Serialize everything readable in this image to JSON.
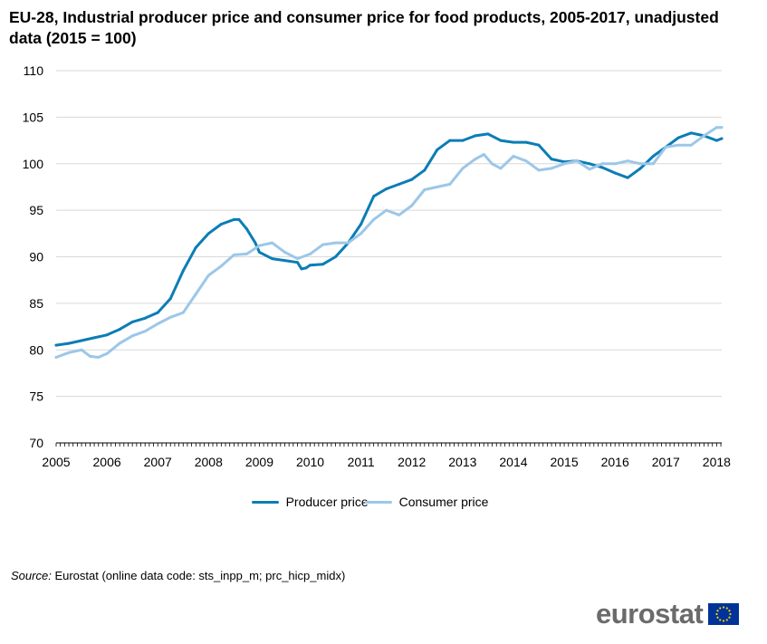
{
  "title": "EU-28, Industrial producer price and consumer price for food products, 2005-2017, unadjusted data (2015 = 100)",
  "source_label": "Source:",
  "source_text": "Eurostat (online data code: sts_inpp_m; prc_hicp_midx)",
  "logo_text": "eurostat",
  "chart_data": {
    "type": "line",
    "title": "EU-28, Industrial producer price and consumer price for food products, 2005-2017, unadjusted data (2015 = 100)",
    "xlabel": "",
    "ylabel": "",
    "xlim": [
      2005,
      2018.1
    ],
    "ylim": [
      70,
      110
    ],
    "y_ticks": [
      70,
      75,
      80,
      85,
      90,
      95,
      100,
      105,
      110
    ],
    "x_ticks": [
      2005,
      2006,
      2007,
      2008,
      2009,
      2010,
      2011,
      2012,
      2013,
      2014,
      2015,
      2016,
      2017,
      2018
    ],
    "grid": true,
    "legend_position": "bottom",
    "series": [
      {
        "name": "Producer price",
        "color": "#0b7db5",
        "x": [
          2005.0,
          2005.25,
          2005.5,
          2005.75,
          2006.0,
          2006.25,
          2006.5,
          2006.75,
          2007.0,
          2007.25,
          2007.5,
          2007.75,
          2008.0,
          2008.25,
          2008.5,
          2008.6,
          2008.75,
          2008.92,
          2009.0,
          2009.25,
          2009.5,
          2009.75,
          2009.83,
          2009.92,
          2010.0,
          2010.25,
          2010.5,
          2010.75,
          2011.0,
          2011.25,
          2011.5,
          2011.75,
          2012.0,
          2012.25,
          2012.5,
          2012.75,
          2013.0,
          2013.25,
          2013.5,
          2013.75,
          2014.0,
          2014.25,
          2014.5,
          2014.75,
          2015.0,
          2015.25,
          2015.5,
          2015.75,
          2016.0,
          2016.25,
          2016.5,
          2016.75,
          2017.0,
          2017.25,
          2017.5,
          2017.75,
          2018.0,
          2018.1
        ],
        "values": [
          80.5,
          80.7,
          81.0,
          81.3,
          81.6,
          82.2,
          83.0,
          83.4,
          84.0,
          85.5,
          88.5,
          91.0,
          92.5,
          93.5,
          94.0,
          94.0,
          93.0,
          91.5,
          90.5,
          89.8,
          89.6,
          89.4,
          88.7,
          88.8,
          89.1,
          89.2,
          90.0,
          91.5,
          93.5,
          96.5,
          97.3,
          97.8,
          98.3,
          99.3,
          101.5,
          102.5,
          102.5,
          103.0,
          103.2,
          102.5,
          102.3,
          102.3,
          102.0,
          100.5,
          100.2,
          100.3,
          100.0,
          99.6,
          99.0,
          98.5,
          99.5,
          100.8,
          101.8,
          102.8,
          103.3,
          103.0,
          102.5,
          102.7
        ]
      },
      {
        "name": "Consumer price",
        "color": "#9cc7e8",
        "x": [
          2005.0,
          2005.25,
          2005.5,
          2005.67,
          2005.83,
          2006.0,
          2006.25,
          2006.5,
          2006.75,
          2007.0,
          2007.25,
          2007.5,
          2007.75,
          2008.0,
          2008.25,
          2008.5,
          2008.75,
          2009.0,
          2009.25,
          2009.5,
          2009.75,
          2010.0,
          2010.25,
          2010.5,
          2010.75,
          2011.0,
          2011.25,
          2011.5,
          2011.75,
          2012.0,
          2012.25,
          2012.5,
          2012.75,
          2013.0,
          2013.25,
          2013.42,
          2013.58,
          2013.75,
          2014.0,
          2014.25,
          2014.5,
          2014.75,
          2015.0,
          2015.25,
          2015.5,
          2015.75,
          2016.0,
          2016.25,
          2016.5,
          2016.75,
          2017.0,
          2017.25,
          2017.5,
          2017.75,
          2018.0,
          2018.1
        ],
        "values": [
          79.2,
          79.7,
          80.0,
          79.3,
          79.2,
          79.6,
          80.7,
          81.5,
          82.0,
          82.8,
          83.5,
          84.0,
          86.0,
          88.0,
          89.0,
          90.2,
          90.3,
          91.2,
          91.5,
          90.5,
          89.8,
          90.3,
          91.3,
          91.5,
          91.5,
          92.5,
          94.0,
          95.0,
          94.5,
          95.5,
          97.2,
          97.5,
          97.8,
          99.5,
          100.5,
          101.0,
          100.0,
          99.5,
          100.8,
          100.3,
          99.3,
          99.5,
          100.0,
          100.3,
          99.4,
          100.0,
          100.0,
          100.3,
          100.0,
          100.0,
          101.8,
          102.0,
          102.0,
          103.0,
          103.9,
          103.9
        ]
      }
    ]
  }
}
